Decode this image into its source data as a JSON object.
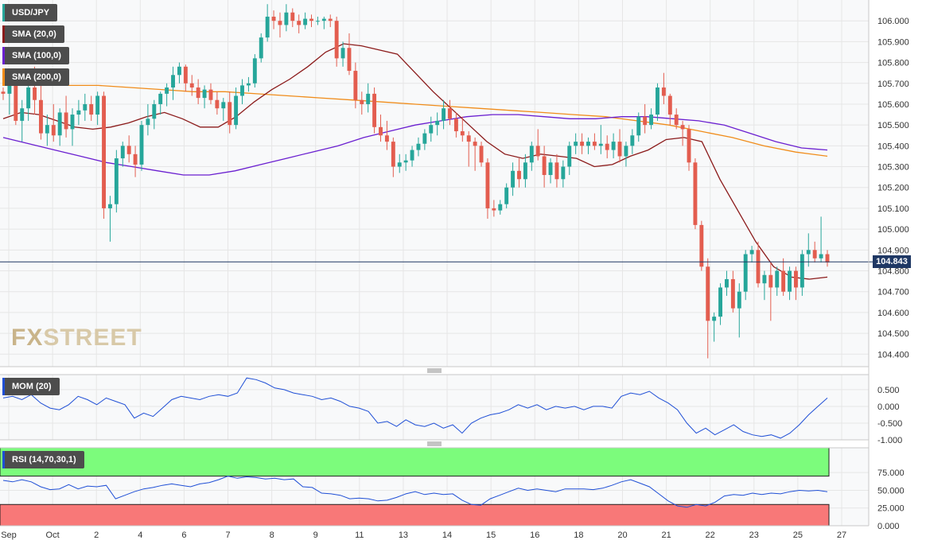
{
  "instrument": "USD/JPY",
  "watermark": {
    "left": "FX",
    "right": "STREET"
  },
  "last_price": "104.843",
  "colors": {
    "up": "#26a69a",
    "down": "#e35d4f",
    "sma20": "#8b1a1a",
    "sma100": "#6a1fd0",
    "sma200": "#f08c1a",
    "mom": "#1f4fd6",
    "rsi": "#1f4fd6",
    "overbought": "#7cfc7c",
    "oversold": "#f87878",
    "price_line": "#1f3864",
    "grid": "#e6e6e6"
  },
  "legends": {
    "price": "USD/JPY",
    "sma20": "SMA (20,0)",
    "sma100": "SMA (100,0)",
    "sma200": "SMA (200,0)",
    "mom": "MOM (20)",
    "rsi": "RSI (14,70,30,1)"
  },
  "chart_data": [
    {
      "type": "candlestick",
      "title": "USD/JPY",
      "yticks": [
        "106.000",
        "105.900",
        "105.800",
        "105.700",
        "105.600",
        "105.500",
        "105.400",
        "105.300",
        "105.200",
        "105.100",
        "105.000",
        "104.900",
        "104.800",
        "104.700",
        "104.600",
        "104.500",
        "104.400"
      ],
      "ylim": [
        104.34,
        106.1
      ],
      "xlabels": [
        "Sep",
        "Oct",
        "2",
        "4",
        "6",
        "7",
        "8",
        "9",
        "11",
        "13",
        "14",
        "15",
        "16",
        "18",
        "20",
        "21",
        "22",
        "23",
        "25",
        "27"
      ],
      "candles": [
        [
          105.66,
          105.68,
          105.62,
          105.65
        ],
        [
          105.65,
          105.74,
          105.55,
          105.7
        ],
        [
          105.7,
          105.76,
          105.5,
          105.52
        ],
        [
          105.52,
          105.62,
          105.42,
          105.58
        ],
        [
          105.58,
          105.72,
          105.52,
          105.68
        ],
        [
          105.68,
          105.78,
          105.55,
          105.62
        ],
        [
          105.62,
          105.7,
          105.43,
          105.46
        ],
        [
          105.46,
          105.55,
          105.4,
          105.5
        ],
        [
          105.5,
          105.6,
          105.42,
          105.45
        ],
        [
          105.45,
          105.58,
          105.4,
          105.56
        ],
        [
          105.56,
          105.64,
          105.44,
          105.48
        ],
        [
          105.48,
          105.58,
          105.4,
          105.55
        ],
        [
          105.55,
          105.62,
          105.5,
          105.57
        ],
        [
          105.57,
          105.65,
          105.52,
          105.6
        ],
        [
          105.6,
          105.64,
          105.52,
          105.55
        ],
        [
          105.55,
          105.66,
          105.5,
          105.64
        ],
        [
          105.64,
          105.66,
          105.05,
          105.1
        ],
        [
          105.1,
          105.16,
          104.94,
          105.12
        ],
        [
          105.12,
          105.38,
          105.08,
          105.34
        ],
        [
          105.34,
          105.42,
          105.3,
          105.4
        ],
        [
          105.4,
          105.45,
          105.32,
          105.36
        ],
        [
          105.36,
          105.4,
          105.25,
          105.31
        ],
        [
          105.31,
          105.52,
          105.28,
          105.5
        ],
        [
          105.5,
          105.6,
          105.45,
          105.53
        ],
        [
          105.53,
          105.62,
          105.48,
          105.6
        ],
        [
          105.6,
          105.66,
          105.55,
          105.65
        ],
        [
          105.65,
          105.7,
          105.59,
          105.68
        ],
        [
          105.68,
          105.78,
          105.62,
          105.74
        ],
        [
          105.74,
          105.8,
          105.7,
          105.78
        ],
        [
          105.78,
          105.79,
          105.66,
          105.7
        ],
        [
          105.7,
          105.74,
          105.64,
          105.68
        ],
        [
          105.68,
          105.72,
          105.6,
          105.63
        ],
        [
          105.63,
          105.69,
          105.58,
          105.67
        ],
        [
          105.67,
          105.7,
          105.6,
          105.62
        ],
        [
          105.62,
          105.66,
          105.55,
          105.58
        ],
        [
          105.58,
          105.63,
          105.52,
          105.61
        ],
        [
          105.61,
          105.66,
          105.46,
          105.5
        ],
        [
          105.5,
          105.68,
          105.48,
          105.64
        ],
        [
          105.64,
          105.72,
          105.6,
          105.69
        ],
        [
          105.69,
          105.73,
          105.66,
          105.7
        ],
        [
          105.7,
          105.84,
          105.68,
          105.82
        ],
        [
          105.82,
          105.94,
          105.8,
          105.92
        ],
        [
          105.92,
          106.08,
          105.9,
          106.02
        ],
        [
          106.02,
          106.05,
          105.96,
          106.0
        ],
        [
          106.0,
          106.04,
          105.92,
          105.98
        ],
        [
          105.98,
          106.08,
          105.95,
          106.04
        ],
        [
          106.04,
          106.06,
          105.97,
          106.0
        ],
        [
          106.0,
          106.03,
          105.94,
          105.98
        ],
        [
          105.98,
          106.04,
          105.96,
          106.01
        ],
        [
          106.01,
          106.03,
          105.97,
          106.0
        ],
        [
          106.0,
          106.02,
          105.98,
          106.0
        ],
        [
          106.0,
          106.02,
          105.96,
          106.01
        ],
        [
          106.01,
          106.03,
          105.97,
          106.0
        ],
        [
          106.0,
          106.02,
          105.78,
          105.82
        ],
        [
          105.82,
          105.9,
          105.78,
          105.87
        ],
        [
          105.87,
          105.94,
          105.74,
          105.76
        ],
        [
          105.76,
          105.8,
          105.58,
          105.62
        ],
        [
          105.62,
          105.66,
          105.55,
          105.6
        ],
        [
          105.6,
          105.7,
          105.56,
          105.65
        ],
        [
          105.65,
          105.68,
          105.46,
          105.49
        ],
        [
          105.49,
          105.55,
          105.42,
          105.45
        ],
        [
          105.45,
          105.52,
          105.38,
          105.42
        ],
        [
          105.42,
          105.44,
          105.25,
          105.3
        ],
        [
          105.3,
          105.36,
          105.27,
          105.32
        ],
        [
          105.32,
          105.36,
          105.28,
          105.33
        ],
        [
          105.33,
          105.4,
          105.3,
          105.38
        ],
        [
          105.38,
          105.44,
          105.35,
          105.41
        ],
        [
          105.41,
          105.48,
          105.38,
          105.46
        ],
        [
          105.46,
          105.54,
          105.42,
          105.5
        ],
        [
          105.5,
          105.56,
          105.45,
          105.52
        ],
        [
          105.52,
          105.62,
          105.48,
          105.58
        ],
        [
          105.58,
          105.62,
          105.5,
          105.53
        ],
        [
          105.53,
          105.56,
          105.44,
          105.47
        ],
        [
          105.47,
          105.54,
          105.42,
          105.45
        ],
        [
          105.45,
          105.47,
          105.3,
          105.42
        ],
        [
          105.42,
          105.44,
          105.28,
          105.4
        ],
        [
          105.4,
          105.42,
          105.3,
          105.32
        ],
        [
          105.32,
          105.34,
          105.05,
          105.1
        ],
        [
          105.1,
          105.14,
          105.06,
          105.09
        ],
        [
          105.09,
          105.14,
          105.07,
          105.12
        ],
        [
          105.12,
          105.22,
          105.1,
          105.2
        ],
        [
          105.2,
          105.32,
          105.16,
          105.28
        ],
        [
          105.28,
          105.34,
          105.2,
          105.24
        ],
        [
          105.24,
          105.36,
          105.2,
          105.32
        ],
        [
          105.32,
          105.42,
          105.28,
          105.4
        ],
        [
          105.4,
          105.48,
          105.33,
          105.35
        ],
        [
          105.35,
          105.4,
          105.2,
          105.26
        ],
        [
          105.26,
          105.34,
          105.22,
          105.32
        ],
        [
          105.32,
          105.36,
          105.2,
          105.24
        ],
        [
          105.24,
          105.33,
          105.2,
          105.3
        ],
        [
          105.3,
          105.42,
          105.26,
          105.4
        ],
        [
          105.4,
          105.46,
          105.36,
          105.42
        ],
        [
          105.42,
          105.46,
          105.36,
          105.4
        ],
        [
          105.4,
          105.44,
          105.36,
          105.42
        ],
        [
          105.42,
          105.46,
          105.38,
          105.4
        ],
        [
          105.4,
          105.5,
          105.36,
          105.41
        ],
        [
          105.41,
          105.45,
          105.34,
          105.38
        ],
        [
          105.38,
          105.46,
          105.34,
          105.42
        ],
        [
          105.42,
          105.48,
          105.32,
          105.35
        ],
        [
          105.35,
          105.42,
          105.3,
          105.4
        ],
        [
          105.4,
          105.48,
          105.36,
          105.45
        ],
        [
          105.45,
          105.56,
          105.42,
          105.54
        ],
        [
          105.54,
          105.6,
          105.46,
          105.5
        ],
        [
          105.5,
          105.58,
          105.48,
          105.55
        ],
        [
          105.55,
          105.7,
          105.52,
          105.68
        ],
        [
          105.68,
          105.75,
          105.6,
          105.64
        ],
        [
          105.64,
          105.65,
          105.5,
          105.55
        ],
        [
          105.55,
          105.58,
          105.48,
          105.5
        ],
        [
          105.5,
          105.52,
          105.4,
          105.48
        ],
        [
          105.48,
          105.5,
          105.28,
          105.32
        ],
        [
          105.32,
          105.34,
          105.0,
          105.02
        ],
        [
          105.02,
          105.04,
          104.8,
          104.82
        ],
        [
          104.82,
          104.86,
          104.38,
          104.56
        ],
        [
          104.56,
          104.6,
          104.46,
          104.58
        ],
        [
          104.58,
          104.74,
          104.54,
          104.72
        ],
        [
          104.72,
          104.8,
          104.68,
          104.76
        ],
        [
          104.76,
          104.8,
          104.6,
          104.62
        ],
        [
          104.62,
          104.74,
          104.48,
          104.7
        ],
        [
          104.7,
          104.9,
          104.66,
          104.88
        ],
        [
          104.88,
          104.92,
          104.84,
          104.9
        ],
        [
          104.9,
          104.94,
          104.72,
          104.74
        ],
        [
          104.74,
          104.8,
          104.66,
          104.78
        ],
        [
          104.78,
          104.84,
          104.56,
          104.72
        ],
        [
          104.72,
          104.82,
          104.68,
          104.8
        ],
        [
          104.8,
          104.86,
          104.68,
          104.7
        ],
        [
          104.7,
          104.82,
          104.66,
          104.8
        ],
        [
          104.8,
          104.82,
          104.66,
          104.72
        ],
        [
          104.72,
          104.9,
          104.68,
          104.88
        ],
        [
          104.88,
          104.98,
          104.82,
          104.9
        ],
        [
          104.9,
          104.94,
          104.84,
          104.86
        ],
        [
          104.86,
          105.06,
          104.84,
          104.88
        ],
        [
          104.88,
          104.9,
          104.82,
          104.84
        ]
      ],
      "sma20": [
        105.53,
        105.56,
        105.55,
        105.52,
        105.49,
        105.48,
        105.49,
        105.51,
        105.54,
        105.56,
        105.53,
        105.49,
        105.49,
        105.54,
        105.61,
        105.67,
        105.72,
        105.78,
        105.85,
        105.89,
        105.88,
        105.86,
        105.84,
        105.75,
        105.66,
        105.58,
        105.5,
        105.42,
        105.36,
        105.34,
        105.36,
        105.35,
        105.34,
        105.3,
        105.31,
        105.35,
        105.38,
        105.43,
        105.44,
        105.42,
        105.24,
        105.09,
        104.94,
        104.82,
        104.77,
        104.76,
        104.77
      ],
      "sma100": [
        105.44,
        105.41,
        105.38,
        105.35,
        105.32,
        105.3,
        105.28,
        105.26,
        105.26,
        105.28,
        105.31,
        105.34,
        105.37,
        105.4,
        105.44,
        105.47,
        105.5,
        105.52,
        105.54,
        105.55,
        105.55,
        105.54,
        105.53,
        105.53,
        105.54,
        105.54,
        105.53,
        105.52,
        105.5,
        105.46,
        105.42,
        105.39,
        105.38
      ],
      "sma200": [
        105.7,
        105.7,
        105.69,
        105.69,
        105.68,
        105.67,
        105.66,
        105.66,
        105.65,
        105.64,
        105.63,
        105.62,
        105.61,
        105.6,
        105.59,
        105.58,
        105.57,
        105.56,
        105.55,
        105.54,
        105.52,
        105.5,
        105.47,
        105.44,
        105.4,
        105.37,
        105.35
      ]
    },
    {
      "type": "line",
      "title": "MOM (20)",
      "yticks": [
        "0.500",
        "0.000",
        "-0.500",
        "-1.000"
      ],
      "ylim": [
        -1.0,
        0.95
      ],
      "values": [
        0.25,
        0.3,
        0.2,
        0.35,
        0.1,
        -0.05,
        -0.1,
        0.05,
        0.3,
        0.2,
        0.05,
        0.25,
        0.15,
        0.05,
        -0.35,
        -0.2,
        -0.3,
        -0.05,
        0.2,
        0.3,
        0.25,
        0.2,
        0.3,
        0.35,
        0.3,
        0.4,
        0.85,
        0.8,
        0.7,
        0.55,
        0.5,
        0.4,
        0.35,
        0.3,
        0.2,
        0.25,
        0.15,
        0.0,
        -0.05,
        -0.15,
        -0.5,
        -0.45,
        -0.6,
        -0.4,
        -0.55,
        -0.6,
        -0.5,
        -0.65,
        -0.55,
        -0.8,
        -0.5,
        -0.35,
        -0.25,
        -0.2,
        -0.1,
        0.05,
        -0.05,
        0.05,
        -0.1,
        0.0,
        -0.05,
        0.0,
        -0.1,
        0.0,
        0.0,
        -0.05,
        0.3,
        0.4,
        0.35,
        0.45,
        0.25,
        0.1,
        -0.1,
        -0.5,
        -0.8,
        -0.65,
        -0.85,
        -0.7,
        -0.55,
        -0.75,
        -0.85,
        -0.9,
        -0.85,
        -0.95,
        -0.8,
        -0.55,
        -0.25,
        0.0,
        0.25
      ]
    },
    {
      "type": "line",
      "title": "RSI (14,70,30,1)",
      "yticks": [
        "75.000",
        "50.000",
        "25.000",
        "0.000"
      ],
      "ylim": [
        0,
        110
      ],
      "bands": {
        "overbought": 70,
        "oversold": 30
      },
      "values": [
        64,
        62,
        65,
        62,
        55,
        51,
        52,
        58,
        52,
        56,
        55,
        57,
        38,
        43,
        48,
        52,
        54,
        57,
        59,
        57,
        55,
        59,
        61,
        65,
        70,
        67,
        69,
        68,
        66,
        67,
        65,
        66,
        55,
        54,
        46,
        45,
        43,
        38,
        39,
        38,
        35,
        36,
        40,
        45,
        48,
        44,
        46,
        44,
        45,
        36,
        30,
        29,
        38,
        43,
        48,
        53,
        50,
        52,
        50,
        48,
        52,
        52,
        52,
        51,
        53,
        57,
        62,
        65,
        60,
        55,
        45,
        35,
        28,
        26,
        30,
        28,
        33,
        42,
        44,
        43,
        46,
        44,
        46,
        45,
        48,
        50,
        49,
        50,
        48
      ]
    }
  ]
}
